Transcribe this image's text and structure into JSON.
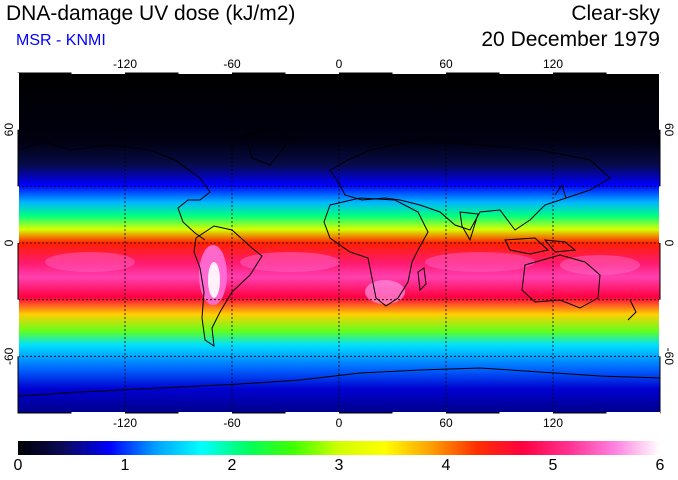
{
  "header": {
    "title": "DNA-damage UV dose (kJ/m2)",
    "source": "MSR - KNMI",
    "sky_condition": "Clear-sky",
    "date": "20 December 1979"
  },
  "map": {
    "projection": "equirectangular",
    "lon_range": [
      -180,
      180
    ],
    "lat_range": [
      -90,
      90
    ],
    "lon_ticks": [
      "-120",
      "-60",
      "0",
      "60",
      "120"
    ],
    "lon_tick_values": [
      -120,
      -60,
      0,
      60,
      120
    ],
    "lat_ticks": [
      "60",
      "0",
      "-60"
    ],
    "lat_tick_values": [
      60,
      0,
      -60
    ]
  },
  "colorbar": {
    "labels": [
      "0",
      "1",
      "2",
      "3",
      "4",
      "5",
      "6"
    ],
    "min": 0,
    "max": 6,
    "colors": [
      "#000000",
      "#0a0a5a",
      "#0000ff",
      "#00a0ff",
      "#00ffff",
      "#00ff60",
      "#40ff00",
      "#d0ff00",
      "#ffff00",
      "#ffa000",
      "#ff3000",
      "#ff0040",
      "#ff3090",
      "#ff80e0",
      "#ffffff"
    ]
  }
}
